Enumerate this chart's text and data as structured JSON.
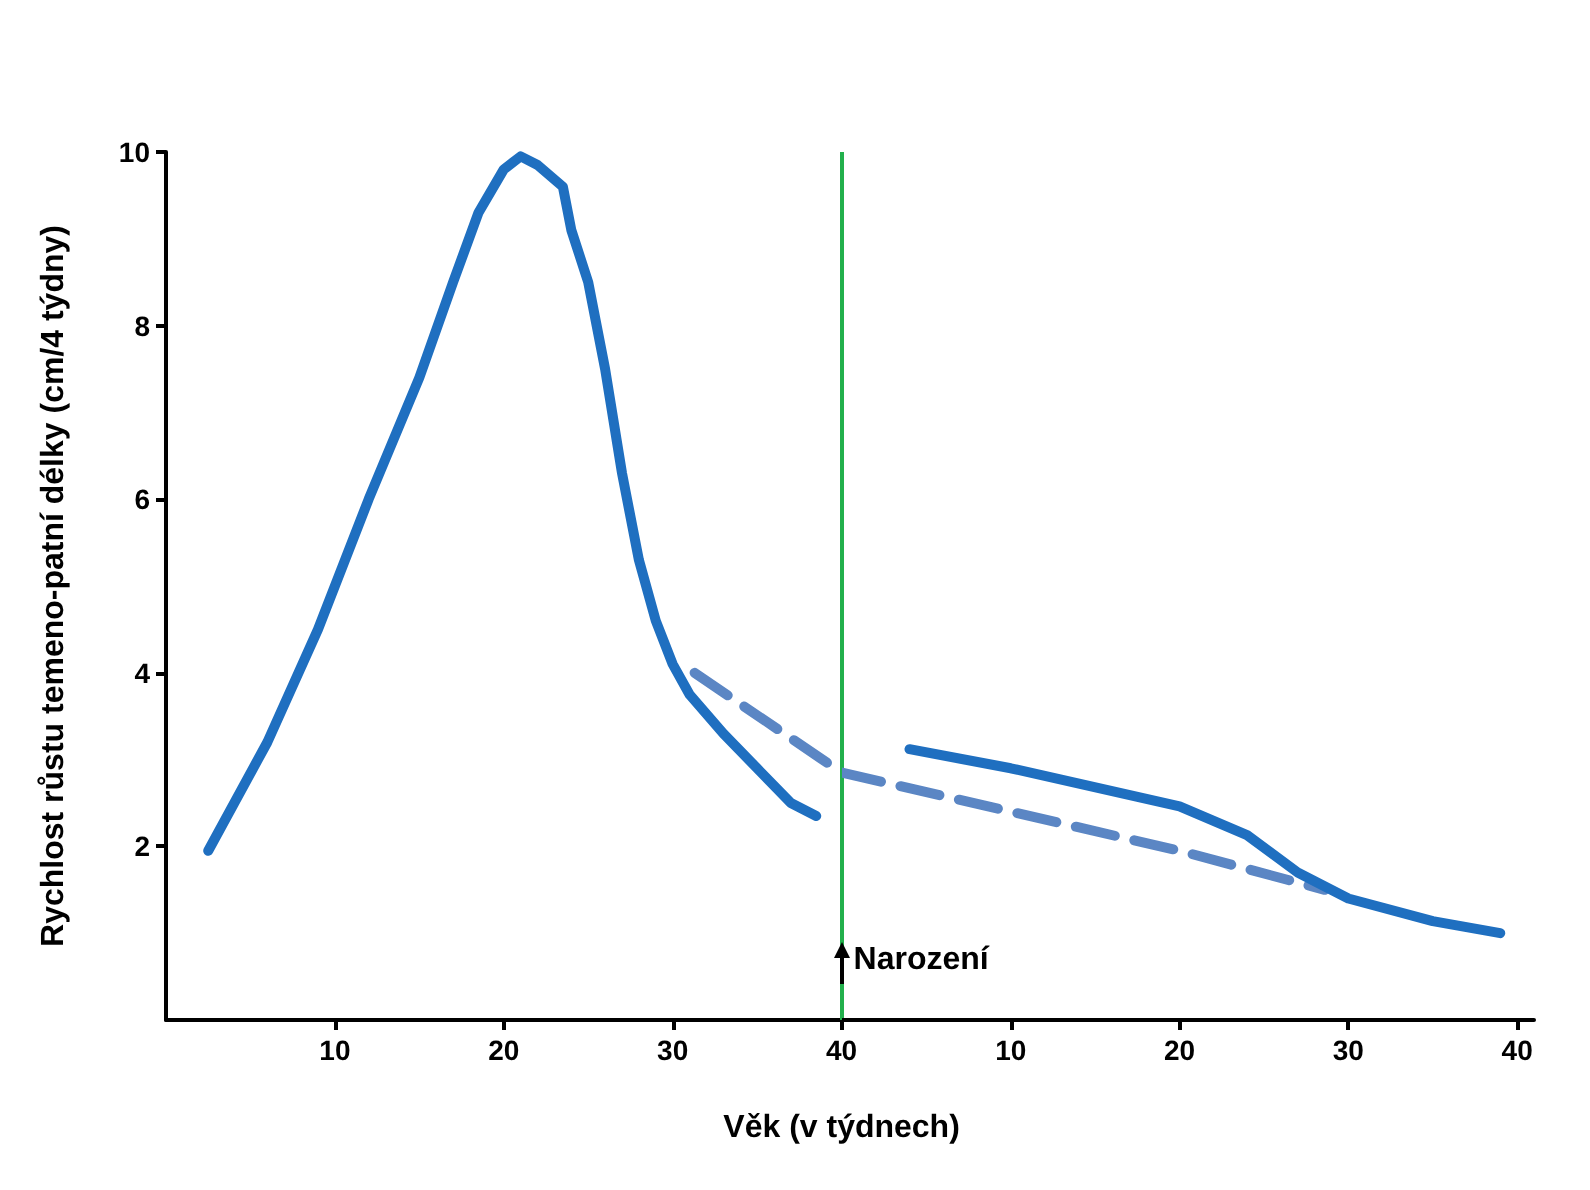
{
  "chart_data": [
    {
      "type": "line",
      "xlabel": "Věk (v týdnech)",
      "ylabel": "Rychlost růstu temeno-patní délky (cm/4 týdny)",
      "xlim": [
        0,
        40
      ],
      "ylim": [
        0,
        10
      ],
      "xticks": [
        10,
        20,
        30,
        40
      ],
      "yticks": [
        2,
        4,
        6,
        8,
        10
      ],
      "series": [
        {
          "color": "#1f6fc0",
          "line_style": "solid",
          "x": [
            2.5,
            6,
            9,
            12,
            15,
            17,
            18.5,
            20,
            21,
            22,
            23.5,
            24,
            25,
            26,
            27,
            28,
            29,
            30,
            31,
            33,
            35,
            37,
            38.5
          ],
          "values": [
            1.95,
            3.2,
            4.5,
            6.0,
            7.4,
            8.5,
            9.3,
            9.8,
            9.95,
            9.85,
            9.6,
            9.1,
            8.5,
            7.5,
            6.3,
            5.3,
            4.6,
            4.1,
            3.75,
            3.3,
            2.9,
            2.5,
            2.35
          ]
        },
        {
          "color": "#5b86c4",
          "line_style": "dashed",
          "x": [
            31.3,
            40
          ],
          "values": [
            4.0,
            2.85
          ]
        }
      ],
      "ref_lines": [
        {
          "axis": "x",
          "value": 40,
          "label": "Narození",
          "color": "#22b04c"
        }
      ],
      "grid": false,
      "marker": "none"
    },
    {
      "type": "line",
      "xlim": [
        0,
        41
      ],
      "ylim": [
        0,
        10
      ],
      "xticks": [
        10,
        20,
        30,
        40
      ],
      "tick_labels": "x",
      "series": [
        {
          "color": "#5b86c4",
          "line_style": "dashed",
          "x": [
            0,
            10,
            20,
            28.6
          ],
          "values": [
            2.85,
            2.4,
            1.95,
            1.5
          ]
        },
        {
          "color": "#1f6fc0",
          "line_style": "solid",
          "x": [
            4,
            10,
            20,
            24,
            27,
            30,
            35,
            39
          ],
          "values": [
            3.12,
            2.9,
            2.46,
            2.13,
            1.7,
            1.4,
            1.14,
            1.0
          ]
        }
      ],
      "grid": false,
      "marker": "none"
    }
  ]
}
